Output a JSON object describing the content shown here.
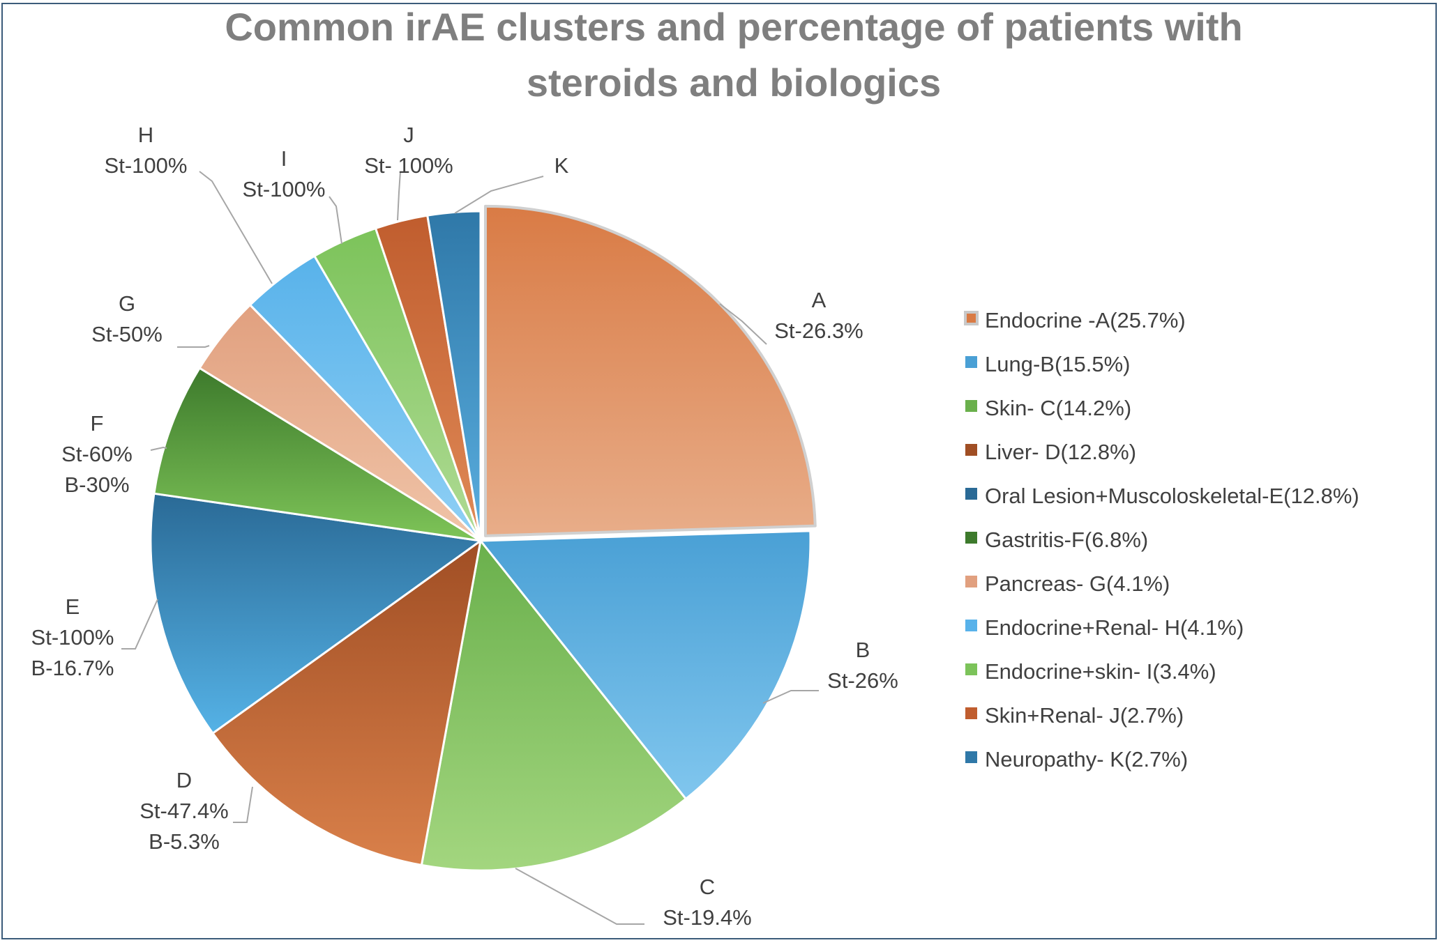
{
  "chart_data": {
    "type": "pie",
    "title": "Common irAE clusters and percentage of patients with steroids and biologics",
    "title_lines": [
      "Common irAE clusters and percentage of patients with",
      "steroids and biologics"
    ],
    "legend_position": "right",
    "slices": [
      {
        "id": "A",
        "legend": "Endocrine -A(25.7%)",
        "value": 25.7,
        "label_lines": [
          "A",
          "St-26.3%"
        ],
        "colors": [
          "#d97b45",
          "#e8ad89"
        ],
        "exploded": true
      },
      {
        "id": "B",
        "legend": "Lung-B(15.5%)",
        "value": 15.5,
        "label_lines": [
          "B",
          "St-26%"
        ],
        "colors": [
          "#4aa0d5",
          "#80c6ee"
        ]
      },
      {
        "id": "C",
        "legend": "Skin- C(14.2%)",
        "value": 14.2,
        "label_lines": [
          "C",
          "St-19.4%"
        ],
        "colors": [
          "#6ab04c",
          "#a3d67f"
        ]
      },
      {
        "id": "D",
        "legend": "Liver- D(12.8%)",
        "value": 12.8,
        "label_lines": [
          "D",
          "St-47.4%",
          "B-5.3%"
        ],
        "colors": [
          "#a04e24",
          "#d9804a"
        ]
      },
      {
        "id": "E",
        "legend": "Oral Lesion+Muscoloskeletal-E(12.8%)",
        "value": 12.8,
        "label_lines": [
          "E",
          "St-100%",
          "B-16.7%"
        ],
        "colors": [
          "#2a6a96",
          "#55b2e6"
        ]
      },
      {
        "id": "F",
        "legend": "Gastritis-F(6.8%)",
        "value": 6.8,
        "label_lines": [
          "F",
          "St-60%",
          "B-30%"
        ],
        "colors": [
          "#3d7a2c",
          "#7ec458"
        ]
      },
      {
        "id": "G",
        "legend": "Pancreas- G(4.1%)",
        "value": 4.1,
        "label_lines": [
          "G",
          "St-50%"
        ],
        "colors": [
          "#e1a07f",
          "#f0c4a8"
        ]
      },
      {
        "id": "H",
        "legend": "Endocrine+Renal- H(4.1%)",
        "value": 4.1,
        "label_lines": [
          "H",
          "St-100%"
        ],
        "colors": [
          "#58b2ea",
          "#90d0f5"
        ]
      },
      {
        "id": "I",
        "legend": "Endocrine+skin- I(3.4%)",
        "value": 3.4,
        "label_lines": [
          "I",
          "St-100%"
        ],
        "colors": [
          "#7cc35a",
          "#b0db95"
        ]
      },
      {
        "id": "J",
        "legend": "Skin+Renal- J(2.7%)",
        "value": 2.7,
        "label_lines": [
          "J",
          "St- 100%"
        ],
        "colors": [
          "#c05d2e",
          "#e08a57"
        ]
      },
      {
        "id": "K",
        "legend": "Neuropathy- K(2.7%)",
        "value": 2.7,
        "label_lines": [
          "K"
        ],
        "colors": [
          "#2f78a8",
          "#5aaedf"
        ]
      }
    ]
  }
}
